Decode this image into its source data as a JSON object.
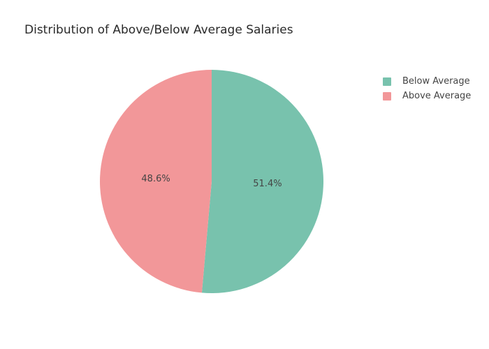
{
  "chart_data": {
    "type": "pie",
    "title": "Distribution of Above/Below Average Salaries",
    "categories": [
      "Below Average",
      "Above Average"
    ],
    "values": [
      51.4,
      48.6
    ],
    "labels": [
      "51.4%",
      "48.6%"
    ],
    "colors": [
      "#78c2ad",
      "#f29799"
    ],
    "legend_position": "top-right",
    "direction": "clockwise",
    "start_angle": "top"
  }
}
